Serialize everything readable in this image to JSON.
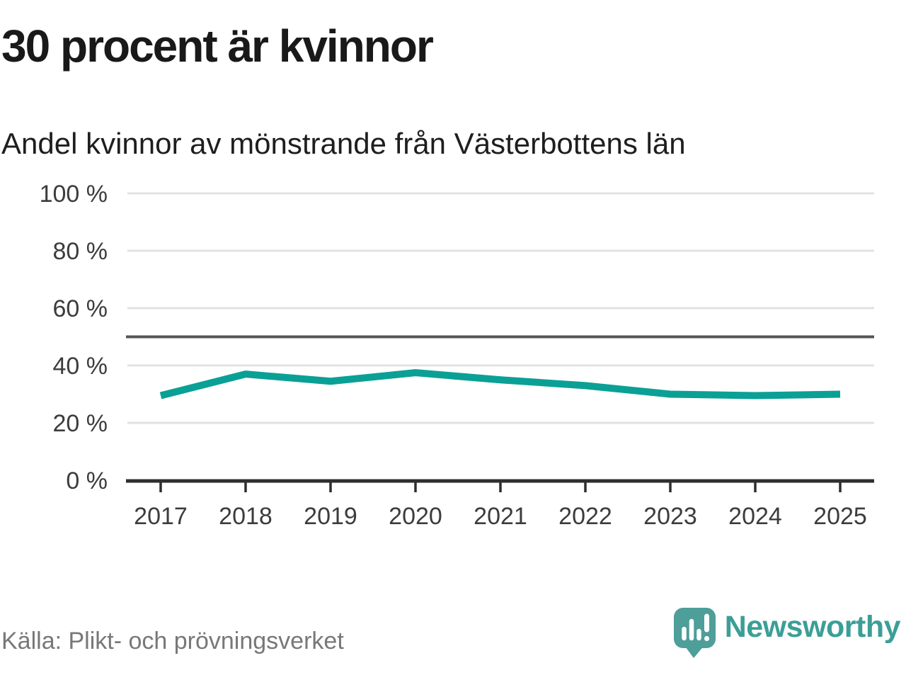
{
  "chart_data": {
    "type": "line",
    "title": "30 procent är kvinnor",
    "subtitle": "Andel kvinnor av mönstrande från Västerbottens län",
    "categories": [
      "2017",
      "2018",
      "2019",
      "2020",
      "2021",
      "2022",
      "2023",
      "2024",
      "2025"
    ],
    "series": [
      {
        "name": "Andel kvinnor av mönstrande",
        "values": [
          29.5,
          37,
          34.5,
          37.5,
          35,
          33,
          30,
          29.5,
          30
        ],
        "color": "#0ba095"
      }
    ],
    "ylim": [
      0,
      100
    ],
    "y_tick_values": [
      0,
      20,
      40,
      60,
      80,
      100
    ],
    "y_tick_labels": [
      "0 %",
      "20 %",
      "40 %",
      "60 %",
      "80 %",
      "100 %"
    ],
    "reference_line": {
      "value": 50,
      "color": "#555558"
    },
    "grid": true,
    "legend": "none",
    "gridline_color": "#e2e2e2",
    "axis_color": "#2e2e2e",
    "tick_label_color": "#3c3c3c"
  },
  "footer": {
    "source": "Källa: Plikt- och prövningsverket",
    "brand": "Newsworthy",
    "brand_color": "#3b9f97",
    "logo_badge_color": "#4e9e99",
    "logo_glyph_color": "#ffffff"
  }
}
